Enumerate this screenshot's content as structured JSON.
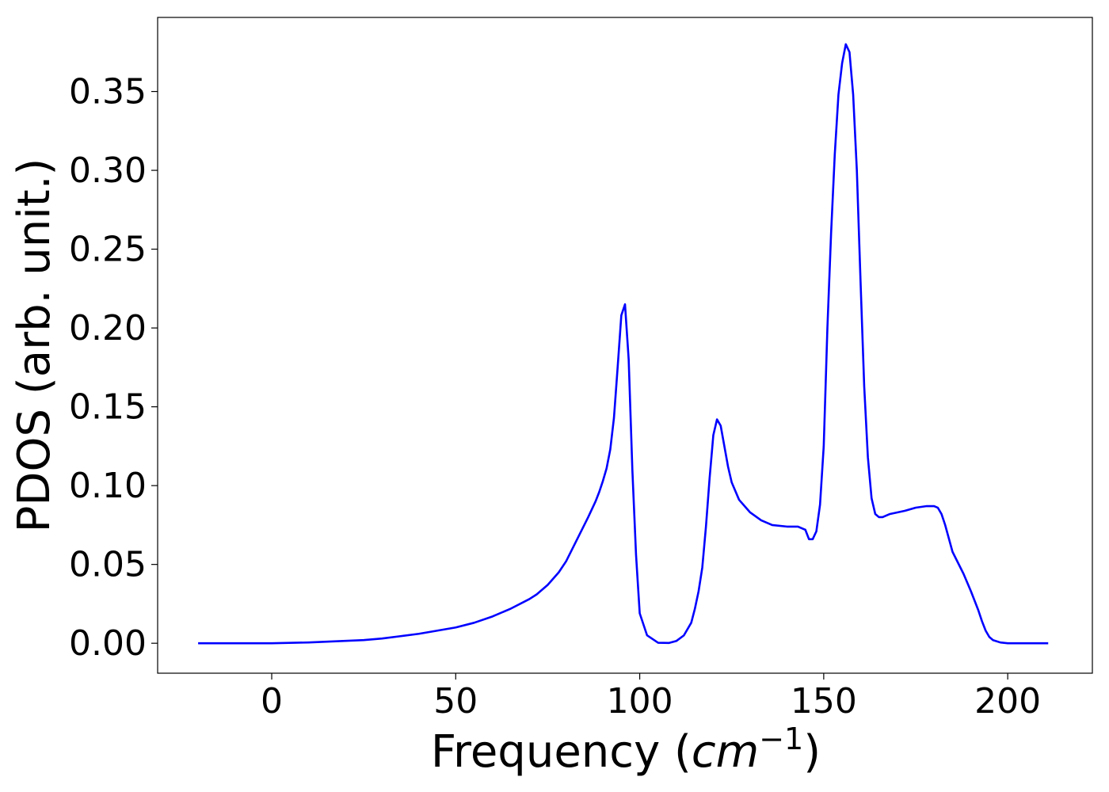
{
  "chart_data": {
    "type": "line",
    "xlabel": "Frequency (",
    "xlabel_math": "cm",
    "xlabel_exponent": "−1",
    "xlabel_close": ")",
    "ylabel": "PDOS (arb. unit.)",
    "xlim": [
      -31,
      223
    ],
    "ylim": [
      -0.019,
      0.397
    ],
    "xticks": [
      0,
      50,
      100,
      150,
      200
    ],
    "xtick_labels": [
      "0",
      "50",
      "100",
      "150",
      "200"
    ],
    "yticks": [
      0.0,
      0.05,
      0.1,
      0.15,
      0.2,
      0.25,
      0.3,
      0.35
    ],
    "ytick_labels": [
      "0.00",
      "0.05",
      "0.10",
      "0.15",
      "0.20",
      "0.25",
      "0.30",
      "0.35"
    ],
    "grid": false,
    "series": [
      {
        "color": "#0000ff",
        "x": [
          -20,
          0,
          10,
          20,
          25,
          30,
          35,
          40,
          45,
          50,
          55,
          60,
          65,
          70,
          72,
          75,
          78,
          80,
          83,
          86,
          88,
          89,
          90,
          91,
          92,
          93,
          94,
          95,
          96,
          97,
          98,
          99,
          100,
          102,
          105,
          108,
          110,
          112,
          114,
          115,
          116,
          117,
          118,
          119,
          120,
          121,
          122,
          123,
          124,
          125,
          127,
          130,
          133,
          136,
          140,
          143,
          145,
          146,
          147,
          148,
          149,
          150,
          151,
          152,
          153,
          154,
          155,
          156,
          157,
          158,
          159,
          160,
          161,
          162,
          163,
          164,
          165,
          166,
          167,
          168,
          170,
          172,
          175,
          178,
          180,
          181,
          182,
          183,
          185,
          188,
          190,
          192,
          193,
          194,
          195,
          196,
          198,
          200,
          205,
          211
        ],
        "y": [
          0.0,
          0.0,
          0.0005,
          0.0015,
          0.002,
          0.003,
          0.0045,
          0.006,
          0.008,
          0.01,
          0.013,
          0.017,
          0.022,
          0.028,
          0.031,
          0.037,
          0.045,
          0.052,
          0.066,
          0.08,
          0.09,
          0.096,
          0.103,
          0.111,
          0.123,
          0.143,
          0.175,
          0.208,
          0.215,
          0.18,
          0.11,
          0.056,
          0.019,
          0.005,
          0.0003,
          0.0002,
          0.0015,
          0.005,
          0.013,
          0.022,
          0.033,
          0.048,
          0.074,
          0.105,
          0.132,
          0.142,
          0.138,
          0.125,
          0.112,
          0.102,
          0.091,
          0.083,
          0.078,
          0.075,
          0.074,
          0.074,
          0.072,
          0.066,
          0.066,
          0.071,
          0.088,
          0.125,
          0.2,
          0.26,
          0.31,
          0.348,
          0.368,
          0.38,
          0.375,
          0.348,
          0.3,
          0.23,
          0.163,
          0.118,
          0.092,
          0.082,
          0.08,
          0.08,
          0.081,
          0.082,
          0.083,
          0.084,
          0.086,
          0.087,
          0.087,
          0.086,
          0.082,
          0.075,
          0.058,
          0.044,
          0.033,
          0.021,
          0.014,
          0.008,
          0.004,
          0.002,
          0.0005,
          0.0,
          0.0,
          0.0
        ]
      }
    ]
  }
}
